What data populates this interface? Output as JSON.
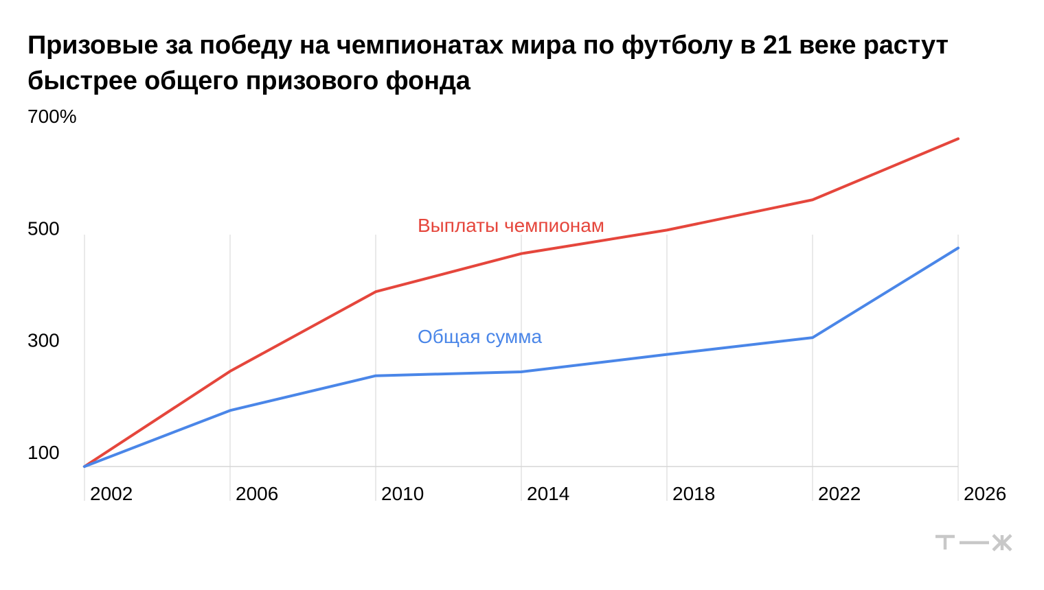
{
  "title": "Призовые за победу на чемпионатах мира по футболу в 21 веке растут быстрее общего призового фонда",
  "logo_text": "т—ж",
  "chart_data": {
    "type": "line",
    "x": [
      2002,
      2006,
      2010,
      2014,
      2018,
      2022,
      2026
    ],
    "x_tick_labels": [
      "2002",
      "2006",
      "2010",
      "2014",
      "2018",
      "2022",
      "2026"
    ],
    "y_tick_values": [
      100,
      300,
      500,
      700
    ],
    "y_tick_labels": [
      "100",
      "300",
      "500",
      "700%"
    ],
    "ylim": [
      100,
      700
    ],
    "grid": "vertical",
    "series": [
      {
        "name": "Выплаты чемпионам",
        "color": "#e5463c",
        "values": [
          100,
          270,
          412,
          480,
          522,
          576,
          685
        ]
      },
      {
        "name": "Общая сумма",
        "color": "#4a86e8",
        "values": [
          100,
          200,
          262,
          269,
          300,
          330,
          490
        ]
      }
    ]
  }
}
